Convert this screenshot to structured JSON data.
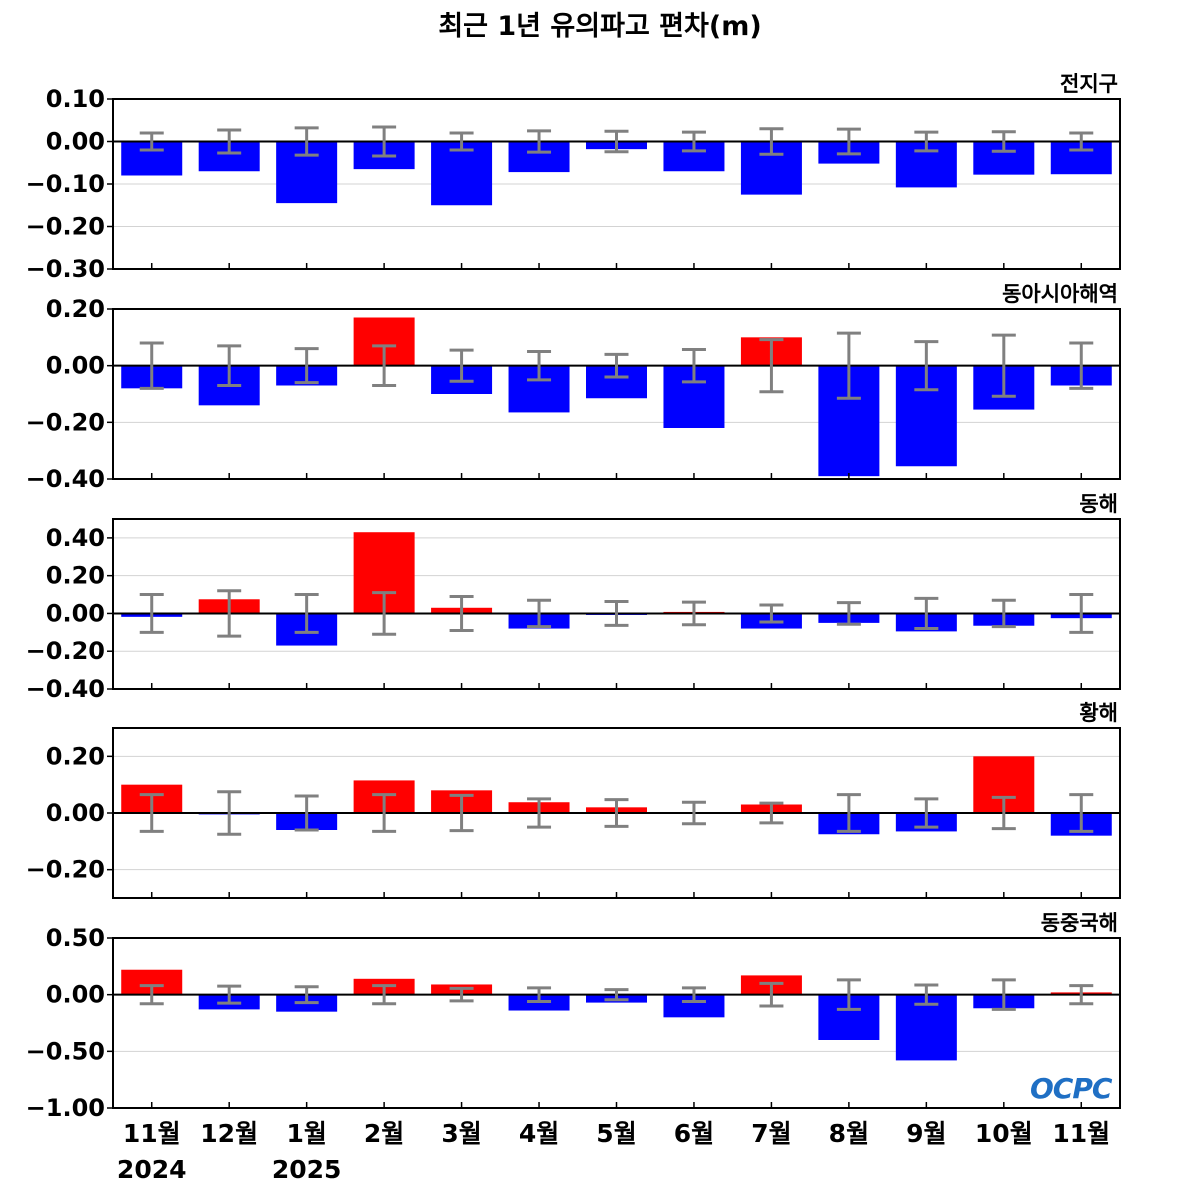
{
  "title": "최근 1년 유의파고 편차(m)",
  "logo_text": "OCPC",
  "colors": {
    "positive": "#ff0000",
    "negative": "#0000ff",
    "errorbar": "#808080",
    "zero_line": "#000000",
    "grid": "#d3d3d3"
  },
  "chart_data": [
    {
      "type": "bar",
      "title": "전지구",
      "categories": [
        "11월",
        "12월",
        "1월",
        "2월",
        "3월",
        "4월",
        "5월",
        "6월",
        "7월",
        "8월",
        "9월",
        "10월",
        "11월"
      ],
      "values": [
        -0.08,
        -0.07,
        -0.145,
        -0.065,
        -0.15,
        -0.072,
        -0.018,
        -0.07,
        -0.125,
        -0.052,
        -0.108,
        -0.078,
        -0.077
      ],
      "error": [
        0.02,
        0.027,
        0.032,
        0.034,
        0.02,
        0.025,
        0.024,
        0.022,
        0.03,
        0.029,
        0.022,
        0.023,
        0.02
      ],
      "ylim": [
        -0.3,
        0.1
      ],
      "yticks": [
        "0.10",
        "0.00",
        "−0.10",
        "−0.20",
        "−0.30"
      ],
      "ytick_values": [
        0.1,
        0,
        -0.1,
        -0.2,
        -0.3
      ],
      "grid": true
    },
    {
      "type": "bar",
      "title": "동아시아해역",
      "categories": [
        "11월",
        "12월",
        "1월",
        "2월",
        "3월",
        "4월",
        "5월",
        "6월",
        "7월",
        "8월",
        "9월",
        "10월",
        "11월"
      ],
      "values": [
        -0.08,
        -0.14,
        -0.07,
        0.17,
        -0.1,
        -0.165,
        -0.115,
        -0.22,
        0.1,
        -0.39,
        -0.355,
        -0.155,
        -0.07
      ],
      "error": [
        0.08,
        0.07,
        0.06,
        0.07,
        0.055,
        0.05,
        0.04,
        0.057,
        0.092,
        0.115,
        0.085,
        0.108,
        0.08
      ],
      "ylim": [
        -0.4,
        0.2
      ],
      "yticks": [
        "0.20",
        "0.00",
        "−0.20",
        "−0.40"
      ],
      "ytick_values": [
        0.2,
        0,
        -0.2,
        -0.4
      ],
      "grid": true
    },
    {
      "type": "bar",
      "title": "동해",
      "categories": [
        "11월",
        "12월",
        "1월",
        "2월",
        "3월",
        "4월",
        "5월",
        "6월",
        "7월",
        "8월",
        "9월",
        "10월",
        "11월"
      ],
      "values": [
        -0.018,
        0.075,
        -0.17,
        0.43,
        0.03,
        -0.08,
        -0.008,
        0.008,
        -0.08,
        -0.05,
        -0.095,
        -0.065,
        -0.025
      ],
      "error": [
        0.1,
        0.12,
        0.1,
        0.11,
        0.09,
        0.07,
        0.063,
        0.06,
        0.045,
        0.057,
        0.08,
        0.07,
        0.1
      ],
      "ylim": [
        -0.4,
        0.5
      ],
      "yticks": [
        "0.40",
        "0.20",
        "0.00",
        "−0.20",
        "−0.40"
      ],
      "ytick_values": [
        0.4,
        0.2,
        0,
        -0.2,
        -0.4
      ],
      "grid": true
    },
    {
      "type": "bar",
      "title": "황해",
      "categories": [
        "11월",
        "12월",
        "1월",
        "2월",
        "3월",
        "4월",
        "5월",
        "6월",
        "7월",
        "8월",
        "9월",
        "10월",
        "11월"
      ],
      "values": [
        0.1,
        -0.005,
        -0.06,
        0.115,
        0.08,
        0.038,
        0.02,
        -0.003,
        0.03,
        -0.075,
        -0.065,
        0.2,
        -0.08
      ],
      "error": [
        0.065,
        0.075,
        0.06,
        0.065,
        0.062,
        0.05,
        0.047,
        0.038,
        0.035,
        0.065,
        0.05,
        0.055,
        0.065
      ],
      "ylim": [
        -0.3,
        0.3
      ],
      "yticks": [
        "0.20",
        "0.00",
        "−0.20"
      ],
      "ytick_values": [
        0.2,
        0,
        -0.2
      ],
      "grid": true
    },
    {
      "type": "bar",
      "title": "동중국해",
      "categories": [
        "11월",
        "12월",
        "1월",
        "2월",
        "3월",
        "4월",
        "5월",
        "6월",
        "7월",
        "8월",
        "9월",
        "10월",
        "11월"
      ],
      "values": [
        0.22,
        -0.13,
        -0.15,
        0.14,
        0.09,
        -0.14,
        -0.07,
        -0.2,
        0.17,
        -0.4,
        -0.58,
        -0.12,
        0.02
      ],
      "error": [
        0.08,
        0.075,
        0.07,
        0.08,
        0.055,
        0.06,
        0.045,
        0.06,
        0.1,
        0.13,
        0.085,
        0.13,
        0.08
      ],
      "ylim": [
        -1.0,
        0.5
      ],
      "yticks": [
        "0.50",
        "0.00",
        "−0.50",
        "−1.00"
      ],
      "ytick_values": [
        0.5,
        0,
        -0.5,
        -1.0
      ],
      "grid": true
    }
  ],
  "xaxis": {
    "month_labels": [
      "11월",
      "12월",
      "1월",
      "2월",
      "3월",
      "4월",
      "5월",
      "6월",
      "7월",
      "8월",
      "9월",
      "10월",
      "11월"
    ],
    "year_labels": [
      {
        "text": "2024",
        "index": 0
      },
      {
        "text": "2025",
        "index": 2
      }
    ]
  }
}
